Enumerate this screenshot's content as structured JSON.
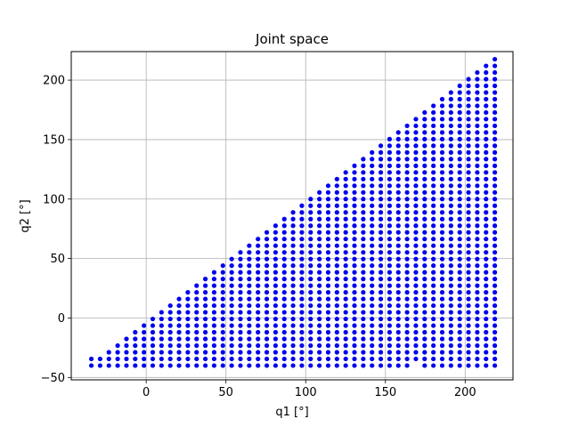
{
  "chart_data": {
    "type": "scatter",
    "title": "Joint space",
    "xlabel": "q1 [°]",
    "ylabel": "q2 [°]",
    "xlim": [
      -47,
      230
    ],
    "ylim": [
      -52,
      224
    ],
    "xticks": [
      0,
      50,
      100,
      150,
      200
    ],
    "yticks": [
      -50,
      0,
      50,
      100,
      150,
      200
    ],
    "grid": true,
    "series": [
      {
        "color": "#0000ee",
        "marker": "circle",
        "region": {
          "x_start": -34.4,
          "x_end": 218.6,
          "x_step": 5.5,
          "y_start": -40,
          "y_step": 5.6,
          "upper_boundary": "q2 = q1",
          "missing_bottom_row_near": [
            165,
            170
          ]
        }
      }
    ]
  }
}
